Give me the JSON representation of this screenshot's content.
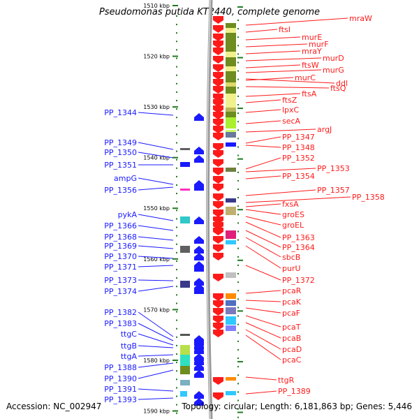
{
  "title": "Pseudomonas putida KT2440, complete genome",
  "footer": {
    "accession": "Accession: NC_002947",
    "summary": "Topology: circular; Length: 6,181,863 bp; Genes: 5,446"
  },
  "colors": {
    "forward_gene": "#1a1aff",
    "reverse_gene": "#ff1a1a",
    "backbone": "#9a9a9a",
    "tick": "#1f7a1f"
  },
  "chart_data": {
    "type": "genome-map",
    "kbp_ticks": [
      {
        "label": "1510 kbp",
        "kbp": 1510
      },
      {
        "label": "1520 kbp",
        "kbp": 1520
      },
      {
        "label": "1530 kbp",
        "kbp": 1530
      },
      {
        "label": "1540 kbp",
        "kbp": 1540
      },
      {
        "label": "1550 kbp",
        "kbp": 1550
      },
      {
        "label": "1560 kbp",
        "kbp": 1560
      },
      {
        "label": "1570 kbp",
        "kbp": 1570
      },
      {
        "label": "1580 kbp",
        "kbp": 1580
      },
      {
        "label": "1590 kbp",
        "kbp": 1590
      }
    ],
    "forward_genes": [
      "PP_1344",
      "PP_1349",
      "PP_1350",
      "PP_1351",
      "ampG",
      "PP_1356",
      "pykA",
      "PP_1366",
      "PP_1368",
      "PP_1369",
      "PP_1370",
      "PP_1371",
      "PP_1373",
      "PP_1374",
      "PP_1382",
      "PP_1383",
      "ttgC",
      "ttgB",
      "ttgA",
      "PP_1388",
      "PP_1390",
      "PP_1391",
      "PP_1393"
    ],
    "reverse_genes": [
      "mraW",
      "ftsI",
      "murE",
      "murF",
      "mraY",
      "murD",
      "ftsW",
      "murG",
      "ddl",
      "murC",
      "ftsQ",
      "ftsA",
      "ftsZ",
      "lpxC",
      "secA",
      "argJ",
      "PP_1347",
      "PP_1348",
      "PP_1352",
      "PP_1353",
      "PP_1354",
      "PP_1357",
      "PP_1358",
      "fxsA",
      "groES",
      "groEL",
      "PP_1363",
      "PP_1364",
      "sbcB",
      "purU",
      "PP_1372",
      "pcaR",
      "pcaK",
      "pcaF",
      "pcaT",
      "pcaB",
      "pcaD",
      "pcaC",
      "ttgR",
      "PP_1389"
    ]
  }
}
